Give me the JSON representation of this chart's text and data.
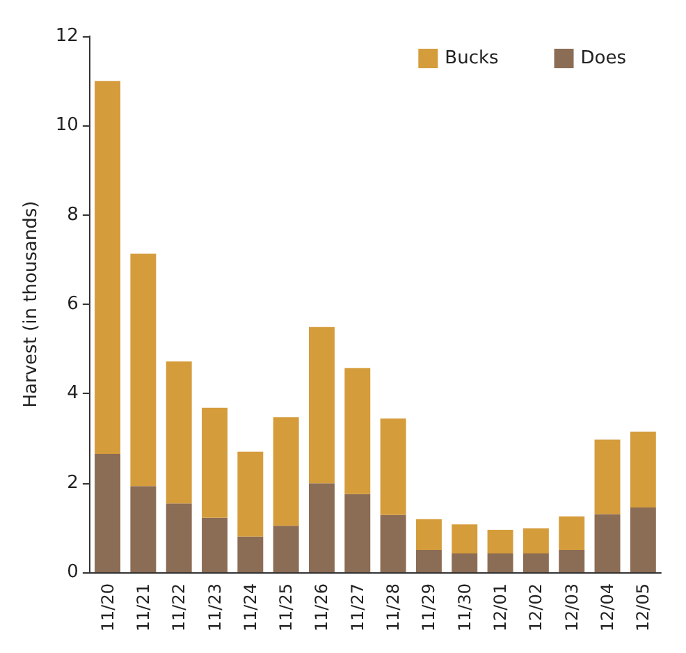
{
  "chart_data": {
    "type": "bar",
    "stacked": true,
    "ylabel": "Harvest (in thousands)",
    "categories": [
      "11/20",
      "11/21",
      "11/22",
      "11/23",
      "11/24",
      "11/25",
      "11/26",
      "11/27",
      "11/28",
      "11/29",
      "11/30",
      "12/01",
      "12/02",
      "12/03",
      "12/04",
      "12/05"
    ],
    "series": [
      {
        "name": "Does",
        "color": "#8b6c54",
        "values": [
          2.65,
          1.93,
          1.54,
          1.22,
          0.8,
          1.04,
          1.99,
          1.75,
          1.28,
          0.5,
          0.42,
          0.42,
          0.42,
          0.5,
          1.3,
          1.45
        ]
      },
      {
        "name": "Bucks",
        "color": "#d59c3c",
        "values": [
          8.35,
          5.2,
          3.18,
          2.46,
          1.9,
          2.43,
          3.5,
          2.82,
          2.16,
          0.69,
          0.65,
          0.53,
          0.56,
          0.75,
          1.67,
          1.7
        ]
      }
    ],
    "ylim": [
      0,
      12
    ],
    "yticks": [
      0,
      2,
      4,
      6,
      8,
      10,
      12
    ],
    "grid": false,
    "legend": "top right"
  }
}
